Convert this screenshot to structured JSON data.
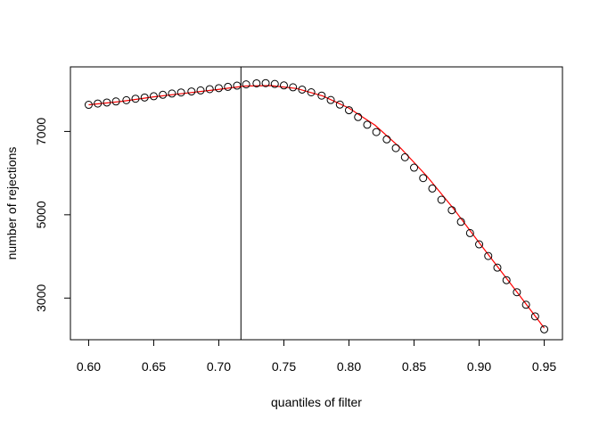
{
  "chart_data": {
    "type": "scatter",
    "title": "",
    "xlabel": "quantiles of filter",
    "ylabel": "number of rejections",
    "xlim": [
      0.586,
      0.964
    ],
    "ylim": [
      2000,
      8550
    ],
    "grid": false,
    "x_ticks": [
      0.6,
      0.65,
      0.7,
      0.75,
      0.8,
      0.85,
      0.9,
      0.95
    ],
    "x_tick_labels": [
      "0.60",
      "0.65",
      "0.70",
      "0.75",
      "0.80",
      "0.85",
      "0.90",
      "0.95"
    ],
    "y_ticks": [
      3000,
      5000,
      7000
    ],
    "y_tick_labels": [
      "3000",
      "5000",
      "7000"
    ],
    "vline_x": 0.717,
    "points": {
      "x": [
        0.6,
        0.607,
        0.614,
        0.621,
        0.629,
        0.636,
        0.643,
        0.65,
        0.657,
        0.664,
        0.671,
        0.679,
        0.686,
        0.693,
        0.7,
        0.707,
        0.714,
        0.721,
        0.729,
        0.736,
        0.743,
        0.75,
        0.757,
        0.764,
        0.771,
        0.779,
        0.786,
        0.793,
        0.8,
        0.807,
        0.814,
        0.821,
        0.829,
        0.836,
        0.843,
        0.85,
        0.857,
        0.864,
        0.871,
        0.879,
        0.886,
        0.893,
        0.9,
        0.907,
        0.914,
        0.921,
        0.929,
        0.936,
        0.943,
        0.95
      ],
      "y": [
        7640,
        7670,
        7695,
        7720,
        7750,
        7785,
        7815,
        7845,
        7880,
        7910,
        7935,
        7960,
        7985,
        8015,
        8040,
        8070,
        8100,
        8130,
        8155,
        8160,
        8140,
        8105,
        8060,
        8005,
        7940,
        7860,
        7755,
        7645,
        7510,
        7345,
        7160,
        6985,
        6810,
        6600,
        6380,
        6130,
        5880,
        5630,
        5360,
        5110,
        4830,
        4560,
        4290,
        4010,
        3730,
        3430,
        3140,
        2840,
        2560,
        2250
      ]
    },
    "fit_line": {
      "color": "#ff0000",
      "x": [
        0.6,
        0.625,
        0.65,
        0.675,
        0.7,
        0.72,
        0.74,
        0.76,
        0.78,
        0.8,
        0.82,
        0.84,
        0.86,
        0.88,
        0.9,
        0.925,
        0.95
      ],
      "y": [
        7640,
        7720,
        7830,
        7920,
        8010,
        8090,
        8100,
        8030,
        7850,
        7560,
        7150,
        6590,
        5920,
        5160,
        4330,
        3310,
        2280
      ]
    }
  }
}
